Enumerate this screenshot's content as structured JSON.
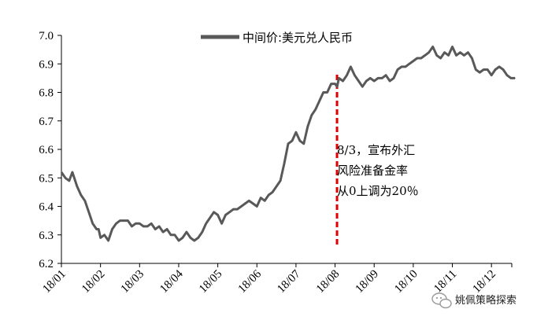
{
  "chart_data": {
    "type": "line",
    "title": "",
    "xlabel": "",
    "ylabel": "",
    "ylim": [
      6.2,
      7.0
    ],
    "yticks": [
      "6.2",
      "6.3",
      "6.4",
      "6.5",
      "6.6",
      "6.7",
      "6.8",
      "6.9",
      "7.0"
    ],
    "xticks": [
      "18/01",
      "18/02",
      "18/03",
      "18/04",
      "18/05",
      "18/06",
      "18/07",
      "18/08",
      "18/09",
      "18/10",
      "18/11",
      "18/12"
    ],
    "grid": false,
    "legend_position": "top-center",
    "series": [
      {
        "name": "中间价:美元兑人民币",
        "color": "#595959",
        "points": [
          [
            0.0,
            6.52
          ],
          [
            0.1,
            6.5
          ],
          [
            0.2,
            6.49
          ],
          [
            0.28,
            6.52
          ],
          [
            0.4,
            6.47
          ],
          [
            0.5,
            6.44
          ],
          [
            0.6,
            6.42
          ],
          [
            0.7,
            6.38
          ],
          [
            0.8,
            6.34
          ],
          [
            0.9,
            6.32
          ],
          [
            0.95,
            6.32
          ],
          [
            1.0,
            6.29
          ],
          [
            1.1,
            6.3
          ],
          [
            1.2,
            6.28
          ],
          [
            1.3,
            6.32
          ],
          [
            1.4,
            6.34
          ],
          [
            1.5,
            6.35
          ],
          [
            1.6,
            6.35
          ],
          [
            1.7,
            6.35
          ],
          [
            1.8,
            6.33
          ],
          [
            1.9,
            6.34
          ],
          [
            2.0,
            6.34
          ],
          [
            2.1,
            6.33
          ],
          [
            2.2,
            6.33
          ],
          [
            2.3,
            6.34
          ],
          [
            2.4,
            6.32
          ],
          [
            2.5,
            6.33
          ],
          [
            2.6,
            6.31
          ],
          [
            2.7,
            6.32
          ],
          [
            2.8,
            6.3
          ],
          [
            2.9,
            6.3
          ],
          [
            3.0,
            6.28
          ],
          [
            3.1,
            6.29
          ],
          [
            3.2,
            6.31
          ],
          [
            3.3,
            6.29
          ],
          [
            3.4,
            6.28
          ],
          [
            3.5,
            6.29
          ],
          [
            3.6,
            6.31
          ],
          [
            3.7,
            6.34
          ],
          [
            3.8,
            6.36
          ],
          [
            3.9,
            6.38
          ],
          [
            4.0,
            6.37
          ],
          [
            4.1,
            6.34
          ],
          [
            4.2,
            6.37
          ],
          [
            4.3,
            6.38
          ],
          [
            4.4,
            6.39
          ],
          [
            4.5,
            6.39
          ],
          [
            4.6,
            6.4
          ],
          [
            4.7,
            6.41
          ],
          [
            4.8,
            6.42
          ],
          [
            4.9,
            6.41
          ],
          [
            5.0,
            6.4
          ],
          [
            5.1,
            6.43
          ],
          [
            5.2,
            6.42
          ],
          [
            5.3,
            6.44
          ],
          [
            5.4,
            6.45
          ],
          [
            5.5,
            6.47
          ],
          [
            5.6,
            6.49
          ],
          [
            5.7,
            6.55
          ],
          [
            5.8,
            6.62
          ],
          [
            5.9,
            6.63
          ],
          [
            6.0,
            6.66
          ],
          [
            6.1,
            6.63
          ],
          [
            6.2,
            6.62
          ],
          [
            6.3,
            6.68
          ],
          [
            6.4,
            6.72
          ],
          [
            6.5,
            6.74
          ],
          [
            6.6,
            6.77
          ],
          [
            6.7,
            6.8
          ],
          [
            6.8,
            6.8
          ],
          [
            6.9,
            6.83
          ],
          [
            7.0,
            6.83
          ],
          [
            7.05,
            6.82
          ],
          [
            7.1,
            6.85
          ],
          [
            7.2,
            6.84
          ],
          [
            7.3,
            6.86
          ],
          [
            7.4,
            6.89
          ],
          [
            7.5,
            6.86
          ],
          [
            7.6,
            6.84
          ],
          [
            7.7,
            6.82
          ],
          [
            7.8,
            6.84
          ],
          [
            7.9,
            6.85
          ],
          [
            8.0,
            6.84
          ],
          [
            8.1,
            6.85
          ],
          [
            8.2,
            6.85
          ],
          [
            8.3,
            6.86
          ],
          [
            8.4,
            6.84
          ],
          [
            8.5,
            6.85
          ],
          [
            8.6,
            6.88
          ],
          [
            8.7,
            6.89
          ],
          [
            8.8,
            6.89
          ],
          [
            8.9,
            6.9
          ],
          [
            9.0,
            6.91
          ],
          [
            9.1,
            6.92
          ],
          [
            9.2,
            6.92
          ],
          [
            9.3,
            6.93
          ],
          [
            9.4,
            6.94
          ],
          [
            9.5,
            6.96
          ],
          [
            9.6,
            6.93
          ],
          [
            9.7,
            6.92
          ],
          [
            9.8,
            6.94
          ],
          [
            9.9,
            6.93
          ],
          [
            10.0,
            6.96
          ],
          [
            10.1,
            6.93
          ],
          [
            10.2,
            6.94
          ],
          [
            10.3,
            6.93
          ],
          [
            10.4,
            6.94
          ],
          [
            10.5,
            6.92
          ],
          [
            10.6,
            6.88
          ],
          [
            10.7,
            6.87
          ],
          [
            10.8,
            6.88
          ],
          [
            10.9,
            6.88
          ],
          [
            11.0,
            6.86
          ],
          [
            11.1,
            6.88
          ],
          [
            11.2,
            6.89
          ],
          [
            11.3,
            6.88
          ],
          [
            11.4,
            6.86
          ],
          [
            11.5,
            6.85
          ],
          [
            11.6,
            6.85
          ]
        ]
      }
    ],
    "reference_line": {
      "x": 7.05,
      "color": "#e00000",
      "style": "dashed"
    },
    "annotation": {
      "lines": [
        "8/3，宣布外汇",
        "风险准备金率",
        "从0上调为20％"
      ]
    }
  },
  "watermark": {
    "text": "姚佩策略探索",
    "icon": "wechat-bubble-icon"
  }
}
